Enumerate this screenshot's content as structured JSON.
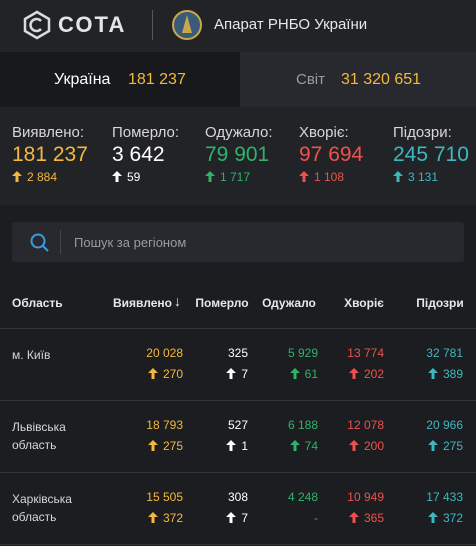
{
  "header": {
    "logo": "СОТА",
    "org": "Апарат РНБО України"
  },
  "tabs": [
    {
      "label": "Україна",
      "value": "181 237"
    },
    {
      "label": "Світ",
      "value": "31 320 651"
    }
  ],
  "stats": [
    {
      "label": "Виявлено:",
      "value": "181 237",
      "delta": "2 884"
    },
    {
      "label": "Померло:",
      "value": "3 642",
      "delta": "59"
    },
    {
      "label": "Одужало:",
      "value": "79 901",
      "delta": "1 717"
    },
    {
      "label": "Хворіє:",
      "value": "97 694",
      "delta": "1 108"
    },
    {
      "label": "Підозри:",
      "value": "245 710",
      "delta": "3 131"
    }
  ],
  "search": {
    "placeholder": "Пошук за регіоном"
  },
  "table": {
    "columns": [
      "Область",
      "Виявлено",
      "Померло",
      "Одужало",
      "Хворіє",
      "Підозри"
    ],
    "rows": [
      {
        "region": "м. Київ",
        "cells": [
          {
            "value": "20 028",
            "delta": "270"
          },
          {
            "value": "325",
            "delta": "7"
          },
          {
            "value": "5 929",
            "delta": "61"
          },
          {
            "value": "13 774",
            "delta": "202"
          },
          {
            "value": "32 781",
            "delta": "389"
          }
        ]
      },
      {
        "region": "Львівська область",
        "cells": [
          {
            "value": "18 793",
            "delta": "275"
          },
          {
            "value": "527",
            "delta": "1"
          },
          {
            "value": "6 188",
            "delta": "74"
          },
          {
            "value": "12 078",
            "delta": "200"
          },
          {
            "value": "20 966",
            "delta": "275"
          }
        ]
      },
      {
        "region": "Харківська область",
        "cells": [
          {
            "value": "15 505",
            "delta": "372"
          },
          {
            "value": "308",
            "delta": "7"
          },
          {
            "value": "4 248",
            "delta": "-"
          },
          {
            "value": "10 949",
            "delta": "365"
          },
          {
            "value": "17 433",
            "delta": "372"
          }
        ]
      }
    ]
  }
}
